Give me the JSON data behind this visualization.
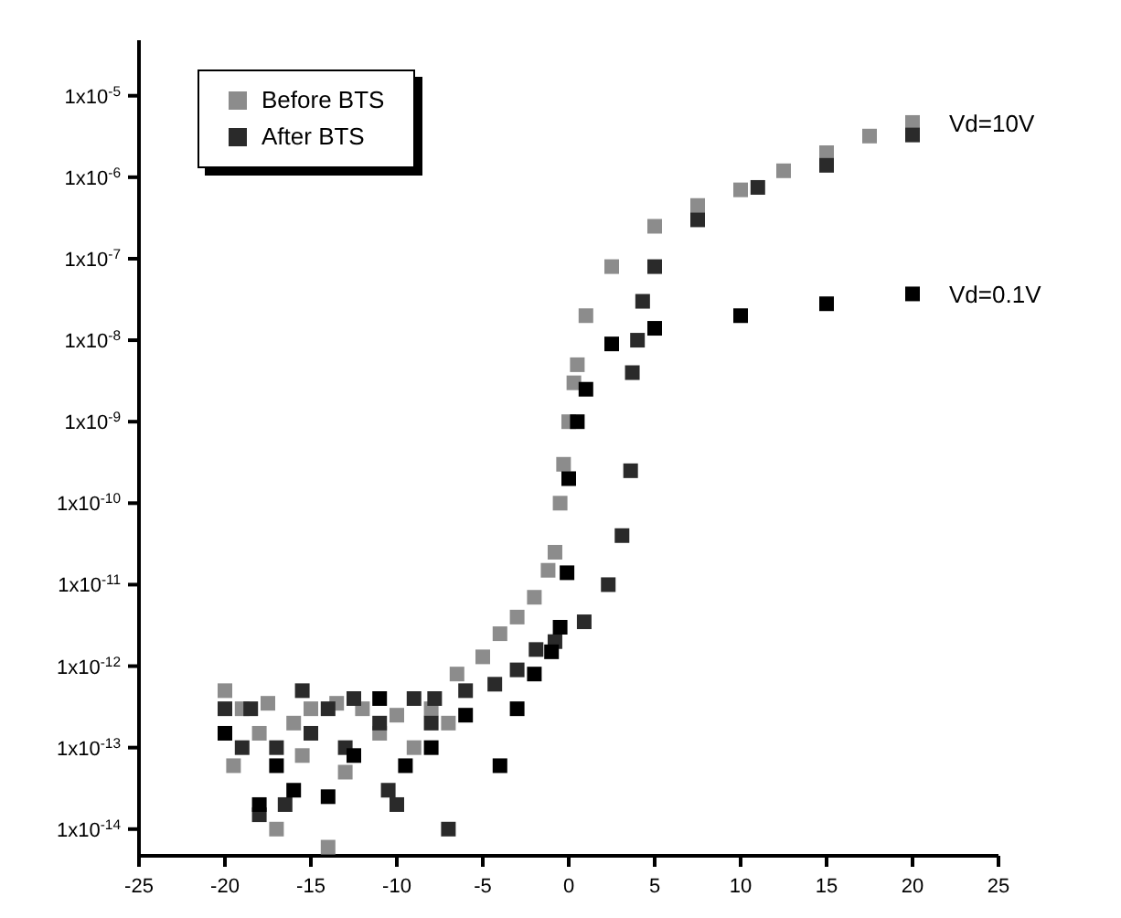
{
  "chart_data": {
    "type": "scatter",
    "marker": "square",
    "log": "y",
    "legend": "top left",
    "xlim": [
      -25,
      25
    ],
    "xticks": [
      -25,
      -20,
      -15,
      -10,
      -5,
      0,
      5,
      10,
      15,
      20,
      25
    ],
    "ylim": [
      4.7e-15,
      4.8e-05
    ],
    "yticks": [
      {
        "value": 1e-14,
        "label": "1x10$^{-14}$"
      },
      {
        "value": 1e-13,
        "label": "1x10$^{-13}$"
      },
      {
        "value": 1e-12,
        "label": "1x10$^{-12}$"
      },
      {
        "value": 1e-11,
        "label": "1x10$^{-11}$"
      },
      {
        "value": 1e-10,
        "label": "1x10$^{-10}$"
      },
      {
        "value": 1e-09,
        "label": "1x10$^{-9}$"
      },
      {
        "value": 1e-08,
        "label": "1x10$^{-8}$"
      },
      {
        "value": 1e-07,
        "label": "1x10$^{-7}$"
      },
      {
        "value": 1e-06,
        "label": "1x10$^{-6}$"
      },
      {
        "value": 1e-05,
        "label": "1x10$^{-5}$"
      }
    ],
    "annotations": [
      {
        "text": "Vd=10V",
        "x": 20,
        "y": 4.7e-06
      },
      {
        "text": "Vd=0.1V",
        "x": 20,
        "y": 3.7e-08
      }
    ],
    "series": [
      {
        "name": "Before BTS",
        "color": "#8c8c8c",
        "x": [
          -20,
          -19.5,
          -19,
          -18,
          -17.5,
          -17,
          -16,
          -15.5,
          -15,
          -14,
          -13.5,
          -13,
          -12,
          -11,
          -10,
          -9,
          -8,
          -7,
          -6.5,
          -5,
          -4,
          -3,
          -2,
          -1.2,
          -0.8,
          -0.5,
          -0.3,
          0,
          0.3,
          0.5,
          1,
          2.5,
          5,
          7.5,
          10,
          12.5,
          15,
          17.5,
          20
        ],
        "values": [
          5e-13,
          6e-14,
          3e-13,
          1.5e-13,
          3.5e-13,
          1e-14,
          2e-13,
          8e-14,
          3e-13,
          6e-15,
          3.5e-13,
          5e-14,
          3e-13,
          1.5e-13,
          2.5e-13,
          1e-13,
          3e-13,
          2e-13,
          8e-13,
          1.3e-12,
          2.5e-12,
          4e-12,
          7e-12,
          1.5e-11,
          2.5e-11,
          1e-10,
          3e-10,
          1e-09,
          3e-09,
          5e-09,
          2e-08,
          8e-08,
          2.5e-07,
          4.5e-07,
          7e-07,
          1.2e-06,
          2e-06,
          3.2e-06,
          4.7e-06
        ]
      },
      {
        "name": "After BTS",
        "color": "#2a2a2a",
        "x": [
          -20,
          -19,
          -18.5,
          -18,
          -17,
          -16.5,
          -15.5,
          -15,
          -14,
          -13,
          -12.5,
          -11,
          -10.5,
          -10,
          -9,
          -8,
          -7,
          -7.8,
          -6,
          -4.3,
          -3,
          -1.9,
          -0.8,
          0.9,
          2.3,
          3.1,
          3.6,
          3.7,
          4,
          4.3,
          5,
          7.5,
          11,
          15,
          20
        ],
        "values": [
          3e-13,
          1e-13,
          3e-13,
          1.5e-14,
          1e-13,
          2e-14,
          5e-13,
          1.5e-13,
          3e-13,
          1e-13,
          4e-13,
          2e-13,
          3e-14,
          2e-14,
          4e-13,
          2e-13,
          1e-14,
          4e-13,
          5e-13,
          6e-13,
          9e-13,
          1.6e-12,
          2e-12,
          3.5e-12,
          1e-11,
          4e-11,
          2.5e-10,
          4e-09,
          1e-08,
          3e-08,
          8e-08,
          3e-07,
          7.5e-07,
          1.4e-06,
          3.3e-06
        ]
      },
      {
        "color": "#000000",
        "x": [
          -20,
          -18,
          -17,
          -16,
          -14,
          -12.5,
          -11,
          -9.5,
          -8,
          -6,
          -4,
          -3,
          -2,
          -1,
          -0.5,
          -0.1,
          0,
          0.5,
          1,
          2.5,
          5,
          10,
          15,
          20
        ],
        "values": [
          1.5e-13,
          2e-14,
          6e-14,
          3e-14,
          2.5e-14,
          8e-14,
          4e-13,
          6e-14,
          1e-13,
          2.5e-13,
          6e-14,
          3e-13,
          8e-13,
          1.5e-12,
          3e-12,
          1.4e-11,
          2e-10,
          1e-09,
          2.5e-09,
          9e-09,
          1.4e-08,
          2e-08,
          2.8e-08,
          3.7e-08
        ]
      }
    ]
  }
}
